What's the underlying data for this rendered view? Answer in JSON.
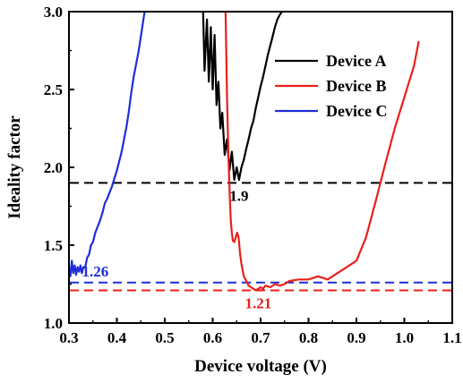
{
  "chart_data": {
    "type": "line",
    "title": "",
    "xlabel": "Device voltage (V)",
    "ylabel": "Ideality factor",
    "xlim": [
      0.3,
      1.1
    ],
    "ylim": [
      1.0,
      3.0
    ],
    "xticks": [
      "0.3",
      "0.4",
      "0.5",
      "0.6",
      "0.7",
      "0.8",
      "0.9",
      "1.0",
      "1.1"
    ],
    "yticks": [
      "1.0",
      "1.5",
      "2.0",
      "2.5",
      "3.0"
    ],
    "grid": false,
    "legend_position": "top-right",
    "series": [
      {
        "name": "Device A",
        "color": "#000000",
        "x": [
          0.58,
          0.583,
          0.588,
          0.592,
          0.596,
          0.6,
          0.604,
          0.608,
          0.612,
          0.616,
          0.62,
          0.625,
          0.63,
          0.635,
          0.64,
          0.645,
          0.65,
          0.655,
          0.66,
          0.665,
          0.67,
          0.675,
          0.68,
          0.685,
          0.69,
          0.695,
          0.7,
          0.705,
          0.71,
          0.715,
          0.72,
          0.725,
          0.73,
          0.735,
          0.74,
          0.745
        ],
        "y": [
          3.0,
          2.62,
          2.95,
          2.55,
          2.9,
          2.5,
          2.85,
          2.4,
          2.55,
          2.25,
          2.35,
          2.08,
          2.18,
          1.98,
          2.1,
          1.92,
          2.0,
          1.92,
          2.0,
          2.05,
          2.12,
          2.18,
          2.25,
          2.3,
          2.38,
          2.45,
          2.52,
          2.58,
          2.65,
          2.72,
          2.78,
          2.84,
          2.9,
          2.95,
          2.98,
          3.0
        ]
      },
      {
        "name": "Device B",
        "color": "#e8201a",
        "x": [
          0.627,
          0.63,
          0.633,
          0.636,
          0.638,
          0.64,
          0.642,
          0.645,
          0.648,
          0.651,
          0.654,
          0.657,
          0.66,
          0.665,
          0.67,
          0.675,
          0.68,
          0.685,
          0.69,
          0.695,
          0.7,
          0.705,
          0.71,
          0.72,
          0.73,
          0.74,
          0.75,
          0.76,
          0.78,
          0.8,
          0.82,
          0.84,
          0.86,
          0.88,
          0.9,
          0.92,
          0.94,
          0.96,
          0.98,
          1.0,
          1.02,
          1.03
        ],
        "y": [
          3.0,
          2.45,
          2.05,
          1.78,
          1.65,
          1.58,
          1.53,
          1.52,
          1.55,
          1.58,
          1.55,
          1.45,
          1.38,
          1.3,
          1.27,
          1.24,
          1.23,
          1.22,
          1.21,
          1.22,
          1.23,
          1.22,
          1.24,
          1.23,
          1.25,
          1.24,
          1.25,
          1.27,
          1.28,
          1.28,
          1.3,
          1.28,
          1.32,
          1.36,
          1.4,
          1.55,
          1.78,
          2.02,
          2.25,
          2.45,
          2.65,
          2.81
        ]
      },
      {
        "name": "Device C",
        "color": "#1f2fd8",
        "x": [
          0.3,
          0.303,
          0.306,
          0.309,
          0.312,
          0.315,
          0.318,
          0.321,
          0.324,
          0.327,
          0.33,
          0.334,
          0.338,
          0.342,
          0.346,
          0.35,
          0.355,
          0.36,
          0.365,
          0.37,
          0.375,
          0.38,
          0.385,
          0.39,
          0.395,
          0.4,
          0.405,
          0.41,
          0.415,
          0.42,
          0.425,
          0.43,
          0.435,
          0.44,
          0.445,
          0.45,
          0.455,
          0.458
        ],
        "y": [
          1.36,
          1.3,
          1.4,
          1.32,
          1.37,
          1.31,
          1.36,
          1.33,
          1.37,
          1.32,
          1.36,
          1.36,
          1.42,
          1.44,
          1.5,
          1.52,
          1.58,
          1.62,
          1.66,
          1.71,
          1.77,
          1.8,
          1.84,
          1.88,
          1.93,
          1.98,
          2.04,
          2.1,
          2.18,
          2.26,
          2.36,
          2.48,
          2.58,
          2.66,
          2.74,
          2.84,
          2.94,
          3.0
        ]
      }
    ],
    "reference_lines": [
      {
        "label": "1.9",
        "y": 1.9,
        "color": "#000000",
        "label_x": 0.655,
        "label_side": "below"
      },
      {
        "label": "1.26",
        "y": 1.26,
        "color": "#1f2fd8",
        "label_x": 0.355,
        "label_side": "above"
      },
      {
        "label": "1.21",
        "y": 1.21,
        "color": "#e8201a",
        "label_x": 0.695,
        "label_side": "below"
      }
    ]
  }
}
